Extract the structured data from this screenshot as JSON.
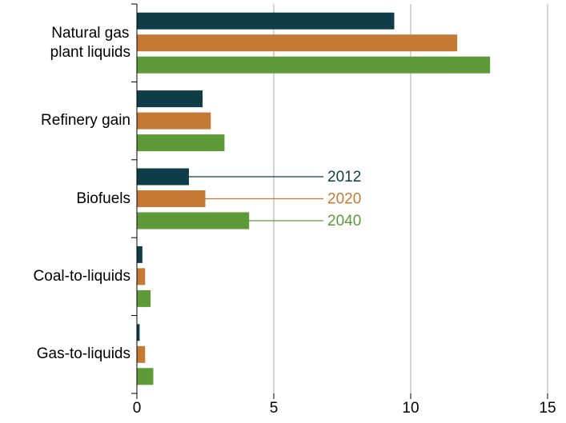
{
  "chart_data": {
    "type": "barh",
    "categories": [
      "Natural gas\nplant liquids",
      "Refinery gain",
      "Biofuels",
      "Coal-to-liquids",
      "Gas-to-liquids"
    ],
    "series": [
      {
        "name": "2012",
        "color": "#0f3d47",
        "values": [
          9.4,
          2.4,
          1.9,
          0.2,
          0.1
        ]
      },
      {
        "name": "2020",
        "color": "#c47a34",
        "values": [
          11.7,
          2.7,
          2.5,
          0.3,
          0.3
        ]
      },
      {
        "name": "2040",
        "color": "#5e9a37",
        "values": [
          12.9,
          3.2,
          4.1,
          0.5,
          0.6
        ]
      }
    ],
    "xlim": [
      0,
      15
    ],
    "xticks": [
      0,
      5,
      10,
      15
    ],
    "grid": true
  }
}
